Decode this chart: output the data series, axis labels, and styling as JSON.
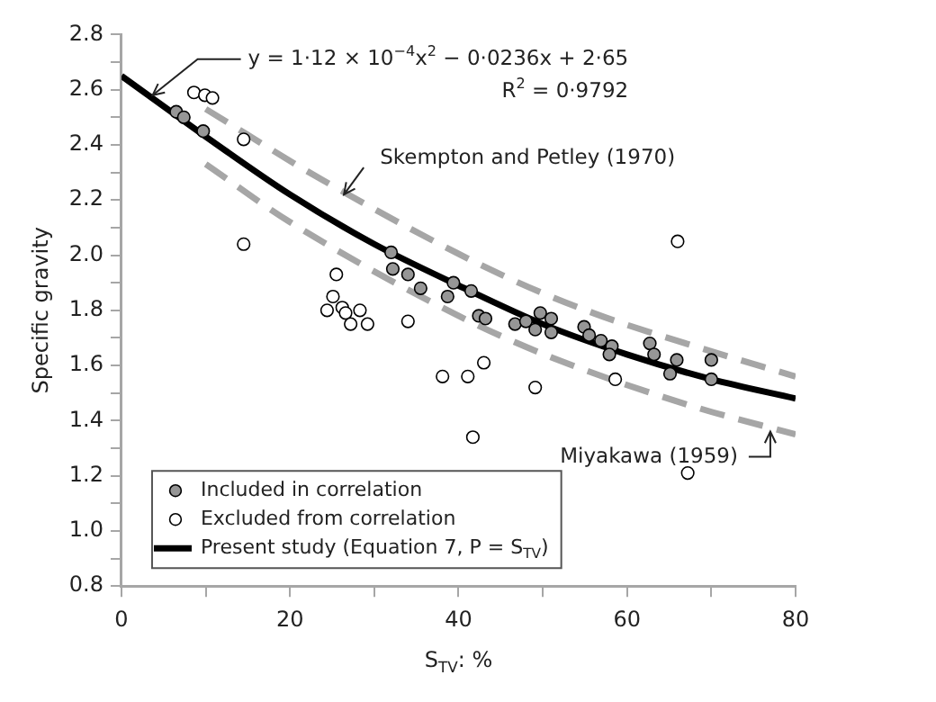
{
  "chart_data": {
    "type": "scatter",
    "xlabel": "S$_{TV}$: %",
    "ylabel": "Specific gravity",
    "xlim": [
      0,
      80
    ],
    "ylim": [
      0.8,
      2.8
    ],
    "xticks": [
      0,
      {
        "value": 10,
        "label": null
      },
      20,
      {
        "value": 30,
        "label": null
      },
      40,
      {
        "value": 50,
        "label": null
      },
      60,
      {
        "value": 70,
        "label": null
      },
      80
    ],
    "yticks": [
      {
        "value": 0.8,
        "label": "0.8"
      },
      {
        "value": 0.9,
        "label": null
      },
      {
        "value": 1.0,
        "label": "1.0"
      },
      {
        "value": 1.1,
        "label": null
      },
      {
        "value": 1.2,
        "label": "1.2"
      },
      {
        "value": 1.3,
        "label": null
      },
      {
        "value": 1.4,
        "label": "1.4"
      },
      {
        "value": 1.5,
        "label": null
      },
      {
        "value": 1.6,
        "label": "1.6"
      },
      {
        "value": 1.7,
        "label": null
      },
      {
        "value": 1.8,
        "label": "1.8"
      },
      {
        "value": 1.9,
        "label": null
      },
      {
        "value": 2.0,
        "label": "2.0"
      },
      {
        "value": 2.1,
        "label": null
      },
      {
        "value": 2.2,
        "label": "2.2"
      },
      {
        "value": 2.3,
        "label": null
      },
      {
        "value": 2.4,
        "label": "2.4"
      },
      {
        "value": 2.5,
        "label": null
      },
      {
        "value": 2.6,
        "label": "2.6"
      },
      {
        "value": 2.7,
        "label": null
      },
      {
        "value": 2.8,
        "label": "2.8"
      }
    ],
    "legend": "bottom left",
    "series": [
      {
        "name": "Included in correlation",
        "marker": "circle",
        "color": "#969696",
        "x": [
          6.5,
          7.4,
          9.7,
          32.0,
          32.2,
          34.0,
          35.5,
          38.7,
          39.4,
          41.5,
          42.4,
          43.2,
          46.7,
          48.0,
          49.1,
          49.7,
          51.0,
          51.0,
          54.9,
          55.5,
          56.9,
          58.2,
          57.9,
          62.7,
          63.2,
          65.1,
          65.9,
          70.0,
          70.0
        ],
        "values": [
          2.52,
          2.5,
          2.45,
          2.01,
          1.95,
          1.93,
          1.88,
          1.85,
          1.9,
          1.87,
          1.78,
          1.77,
          1.75,
          1.76,
          1.73,
          1.79,
          1.77,
          1.72,
          1.74,
          1.71,
          1.69,
          1.67,
          1.64,
          1.68,
          1.64,
          1.57,
          1.62,
          1.62,
          1.55
        ]
      },
      {
        "name": "Excluded from correlation",
        "marker": "circle",
        "color": "#ffffff",
        "x": [
          8.6,
          9.9,
          10.8,
          14.5,
          14.5,
          25.5,
          25.1,
          24.4,
          26.2,
          26.6,
          27.2,
          28.3,
          29.2,
          34.0,
          38.1,
          41.1,
          43.0,
          41.7,
          49.1,
          58.6,
          67.2,
          66.0
        ],
        "values": [
          2.59,
          2.58,
          2.57,
          2.42,
          2.04,
          1.93,
          1.85,
          1.8,
          1.81,
          1.79,
          1.75,
          1.8,
          1.75,
          1.76,
          1.56,
          1.56,
          1.61,
          1.34,
          1.52,
          1.55,
          1.21,
          2.05
        ]
      },
      {
        "name": "Present study (Equation 7, P = S$_{TV}$)",
        "type": "line",
        "marker": "none",
        "line_style": "solid",
        "color": "#000000",
        "x": [
          0,
          5,
          10,
          20,
          30,
          40,
          50,
          60,
          70,
          80
        ],
        "values": [
          2.65,
          2.54,
          2.43,
          2.22,
          2.04,
          1.89,
          1.75,
          1.64,
          1.55,
          1.48
        ]
      },
      {
        "type": "line",
        "marker": "none",
        "line_style": "dashed",
        "color": "#a6a6a6",
        "x": [
          10,
          24,
          45,
          56,
          68,
          80
        ],
        "values": [
          2.53,
          2.27,
          1.93,
          1.79,
          1.67,
          1.56
        ]
      },
      {
        "type": "line",
        "marker": "none",
        "line_style": "dashed",
        "color": "#a6a6a6",
        "x": [
          10,
          20,
          40,
          51,
          68,
          80
        ],
        "values": [
          2.33,
          2.12,
          1.78,
          1.63,
          1.45,
          1.35
        ]
      }
    ],
    "annotations": [
      {
        "text": "y = 1·12 × 10$^{−4}$x$^{2}$ − 0·0236x + 2·65",
        "x": 3.7,
        "y": 2.58
      },
      "R$^{2}$ = 0·9792",
      {
        "text": "Skempton and Petley (1970)",
        "x": 26.4,
        "y": 2.22
      },
      {
        "text": "Miyakawa (1959)",
        "x": 77,
        "y": 1.36
      }
    ]
  }
}
